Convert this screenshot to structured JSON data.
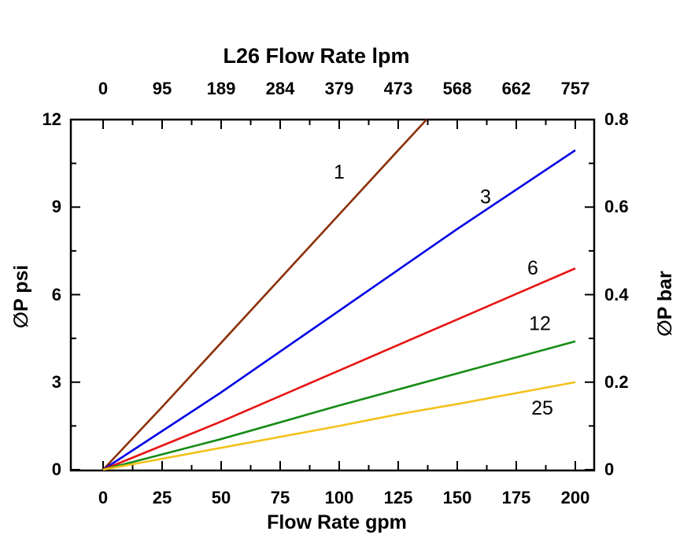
{
  "page": {
    "background": "#ffffff",
    "axis_color": "#000000",
    "text_color": "#000000"
  },
  "chart_data": {
    "type": "line",
    "title": "L26 Flow Rate lpm",
    "top_axis_title": "L26 Flow Rate lpm",
    "xlabel": "Flow Rate gpm",
    "ylabel_left": "∅P psi",
    "ylabel_right": "∅P bar",
    "x_range_gpm": [
      0,
      200
    ],
    "y_range_psi": [
      0,
      12
    ],
    "y_range_bar": [
      0,
      0.8
    ],
    "x_bottom_tick_values_gpm": [
      0,
      25,
      50,
      75,
      100,
      125,
      150,
      175,
      200
    ],
    "x_bottom_tick_labels": [
      "0",
      "25",
      "50",
      "75",
      "100",
      "125",
      "150",
      "175",
      "200"
    ],
    "x_top_tick_labels_lpm": [
      "0",
      "95",
      "189",
      "284",
      "379",
      "473",
      "568",
      "662",
      "757"
    ],
    "y_left_tick_values_psi": [
      0,
      3,
      6,
      9,
      12
    ],
    "y_left_tick_labels": [
      "0",
      "3",
      "6",
      "9",
      "12"
    ],
    "y_right_tick_labels_bar": [
      "0",
      "0.2",
      "0.4",
      "0.6",
      "0.8"
    ],
    "x_minor_step_gpm": 12.5,
    "y_minor_step_psi": 1.5,
    "grid": false,
    "legend": "inline-curve-labels",
    "series": [
      {
        "name": "1",
        "color": "#8c3009",
        "points_gpm_psi": [
          [
            0,
            0
          ],
          [
            25,
            2.15
          ],
          [
            50,
            4.35
          ],
          [
            75,
            6.55
          ],
          [
            100,
            8.75
          ],
          [
            125,
            10.95
          ],
          [
            137,
            12
          ]
        ],
        "label_at_gpm_psi": [
          100,
          10.2
        ]
      },
      {
        "name": "3",
        "color": "#0000e6",
        "points_gpm_psi": [
          [
            0,
            0
          ],
          [
            50,
            2.65
          ],
          [
            100,
            5.45
          ],
          [
            150,
            8.25
          ],
          [
            200,
            10.95
          ]
        ],
        "label_at_gpm_psi": [
          162,
          9.35
        ]
      },
      {
        "name": "6",
        "color": "#e81414",
        "points_gpm_psi": [
          [
            0,
            0
          ],
          [
            50,
            1.65
          ],
          [
            100,
            3.4
          ],
          [
            150,
            5.15
          ],
          [
            200,
            6.9
          ]
        ],
        "label_at_gpm_psi": [
          182,
          6.9
        ]
      },
      {
        "name": "12",
        "color": "#168c16",
        "points_gpm_psi": [
          [
            0,
            0
          ],
          [
            50,
            1.05
          ],
          [
            100,
            2.2
          ],
          [
            150,
            3.3
          ],
          [
            200,
            4.4
          ]
        ],
        "label_at_gpm_psi": [
          185,
          5.0
        ]
      },
      {
        "name": "25",
        "color": "#f2c21c",
        "points_gpm_psi": [
          [
            0,
            0
          ],
          [
            50,
            0.75
          ],
          [
            100,
            1.5
          ],
          [
            125,
            1.9
          ],
          [
            150,
            2.25
          ],
          [
            200,
            3.0
          ]
        ],
        "label_at_gpm_psi": [
          186,
          2.1
        ]
      }
    ]
  }
}
